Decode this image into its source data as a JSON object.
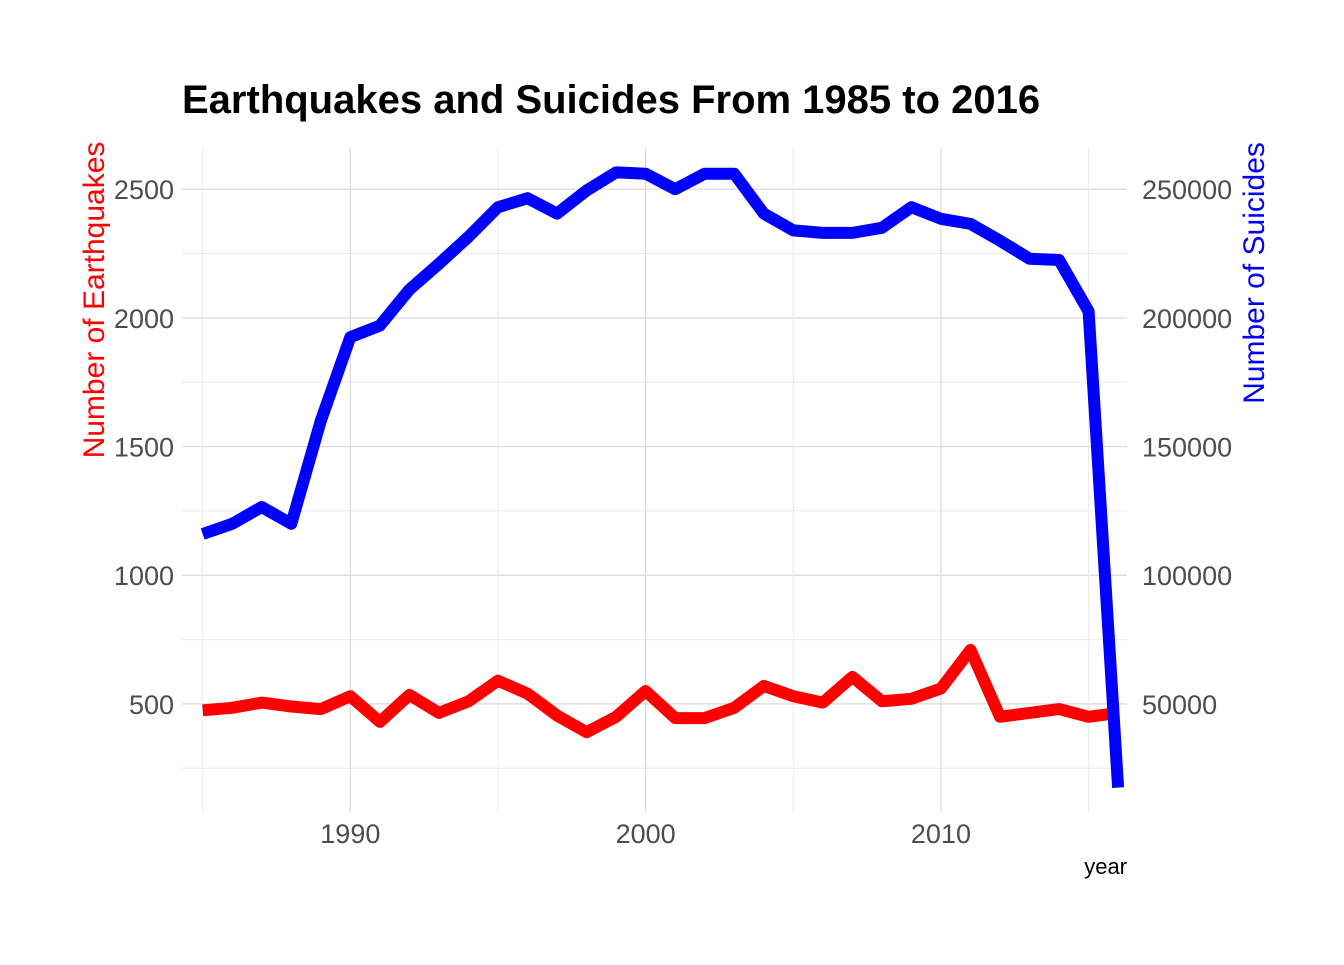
{
  "chart_data": {
    "type": "line",
    "title": "Earthquakes and Suicides From 1985 to 2016",
    "xlabel": "year",
    "ylabel_left": "Number of Earthquakes",
    "ylabel_right": "Number of Suicides",
    "xlim": [
      1984.3,
      2016.3
    ],
    "ylim_left": [
      80,
      2660
    ],
    "ylim_right": [
      8000,
      266000
    ],
    "x_ticks": [
      1990,
      2000,
      2010
    ],
    "y_left_ticks": [
      500,
      1000,
      1500,
      2000,
      2500
    ],
    "y_right_ticks": [
      50000,
      100000,
      150000,
      200000,
      250000
    ],
    "grid": true,
    "colors": {
      "earthquakes": "#ff0000",
      "suicides": "#0000ff"
    },
    "x": [
      1985,
      1986,
      1987,
      1988,
      1989,
      1990,
      1991,
      1992,
      1993,
      1994,
      1995,
      1996,
      1997,
      1998,
      1999,
      2000,
      2001,
      2002,
      2003,
      2004,
      2005,
      2006,
      2007,
      2008,
      2009,
      2010,
      2011,
      2012,
      2013,
      2014,
      2015,
      2016
    ],
    "series": [
      {
        "key": "earthquakes",
        "axis": "left",
        "values": [
          475,
          485,
          505,
          490,
          480,
          530,
          430,
          535,
          465,
          510,
          590,
          540,
          455,
          390,
          450,
          550,
          445,
          445,
          485,
          570,
          530,
          505,
          605,
          510,
          520,
          560,
          710,
          450,
          465,
          480,
          450,
          465
        ]
      },
      {
        "key": "suicides",
        "axis": "right",
        "values": [
          116000,
          120000,
          126500,
          120000,
          160000,
          192500,
          197000,
          211000,
          221000,
          231500,
          243000,
          246500,
          240500,
          249500,
          256500,
          256000,
          250000,
          256000,
          256000,
          240500,
          234000,
          233000,
          233000,
          235000,
          243000,
          238500,
          236500,
          230000,
          223000,
          222500,
          202500,
          17500
        ]
      }
    ]
  }
}
